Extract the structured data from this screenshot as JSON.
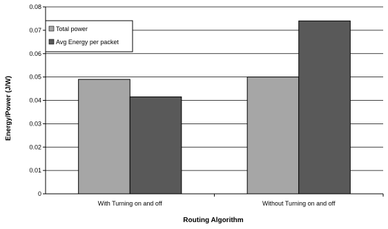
{
  "chart_data": {
    "type": "bar",
    "title": "",
    "xlabel": "Routing Algorithm",
    "ylabel": "Energy/Power (J/W)",
    "categories": [
      "With Turning on and off",
      "Without Turning on and off"
    ],
    "series": [
      {
        "name": "Total power",
        "values": [
          0.049,
          0.05
        ],
        "color": "#a6a6a6"
      },
      {
        "name": "Avg Energy per packet",
        "values": [
          0.0415,
          0.074
        ],
        "color": "#595959"
      }
    ],
    "ylim": [
      0,
      0.08
    ],
    "yticks": [
      "0",
      "0.01",
      "0.02",
      "0.03",
      "0.04",
      "0.05",
      "0.06",
      "0.07",
      "0.08"
    ],
    "grid": true,
    "legend_position": "top-left"
  }
}
